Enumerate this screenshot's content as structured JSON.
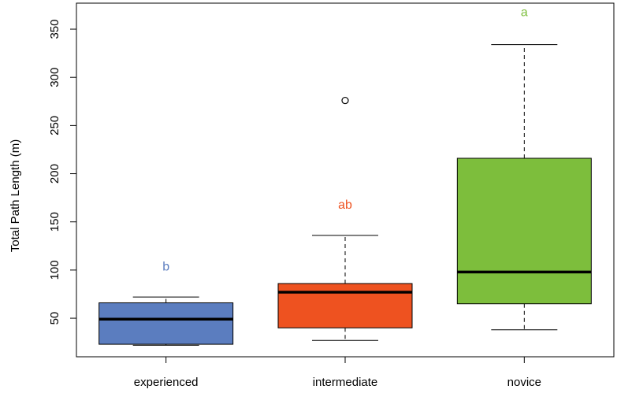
{
  "chart_data": {
    "type": "boxplot",
    "title": "",
    "xlabel": "",
    "ylabel": "Total Path Length (m)",
    "ylim": [
      10,
      377
    ],
    "yticks": [
      50,
      100,
      150,
      200,
      250,
      300,
      350
    ],
    "ytick_labels": [
      "50",
      "100",
      "150",
      "200",
      "250",
      "300",
      "350"
    ],
    "grid": false,
    "legend": "none",
    "categories": [
      "experienced",
      "intermediate",
      "novice"
    ],
    "boxes": [
      {
        "category": "experienced",
        "whisker_low": 22,
        "q1": 23,
        "median": 49,
        "q3": 66,
        "whisker_high": 72,
        "outliers": [],
        "color": "#5B7DBF",
        "sig_label": "b",
        "sig_y": 103
      },
      {
        "category": "intermediate",
        "whisker_low": 27,
        "q1": 40,
        "median": 77,
        "q3": 86,
        "whisker_high": 136,
        "outliers": [
          276
        ],
        "color": "#EE5220",
        "sig_label": "ab",
        "sig_y": 167
      },
      {
        "category": "novice",
        "whisker_low": 38,
        "q1": 65,
        "median": 98,
        "q3": 216,
        "whisker_high": 334,
        "outliers": [],
        "color": "#7DBE3C",
        "sig_label": "a",
        "sig_y": 367
      }
    ]
  }
}
